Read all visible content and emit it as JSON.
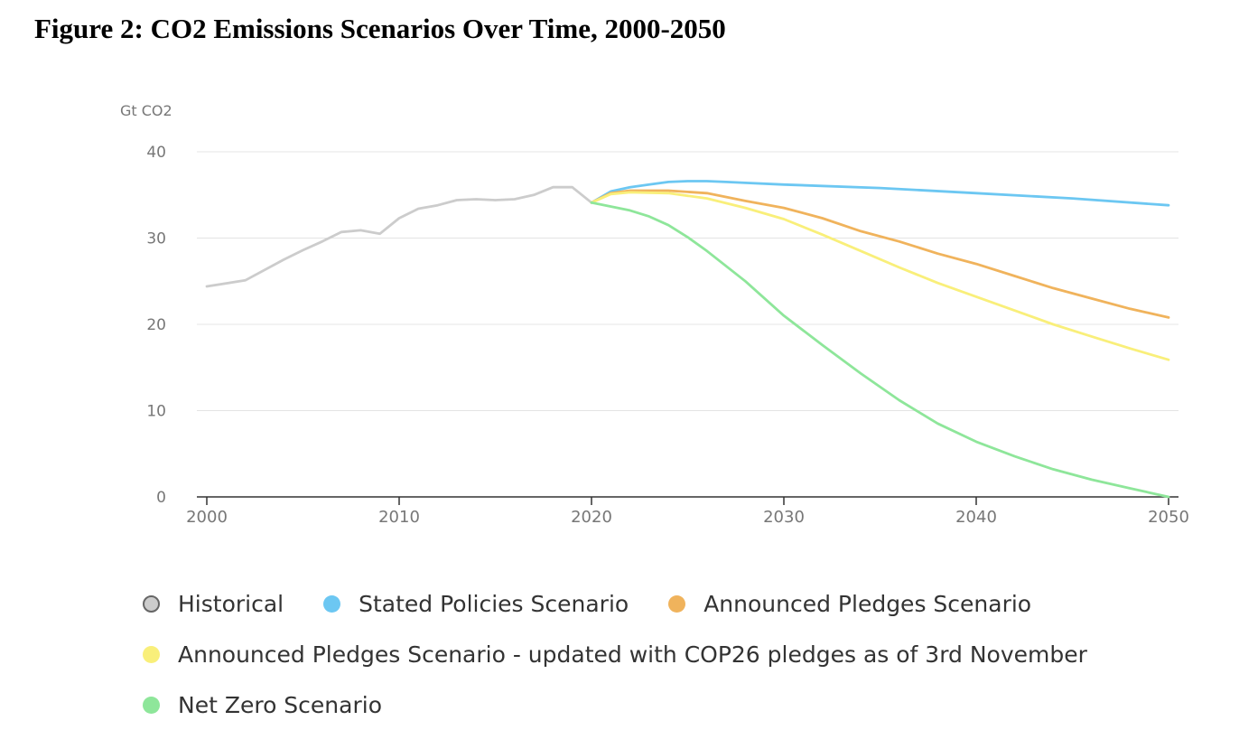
{
  "figure_title": "Figure 2: CO2 Emissions Scenarios Over Time, 2000-2050",
  "chart_data": {
    "type": "line",
    "title": "Figure 2: CO2 Emissions Scenarios Over Time, 2000-2050",
    "ylabel": "Gt CO2",
    "xlabel": "",
    "xlim": [
      2000,
      2050
    ],
    "ylim": [
      0,
      40
    ],
    "x_ticks": [
      "2000",
      "2010",
      "2020",
      "2030",
      "2040",
      "2050"
    ],
    "y_ticks": [
      "0",
      "10",
      "20",
      "30",
      "40"
    ],
    "grid": true,
    "legend_position": "bottom",
    "series": [
      {
        "name": "Historical",
        "color": "#cccccc",
        "x": [
          2000,
          2002,
          2004,
          2005,
          2006,
          2007,
          2008,
          2009,
          2010,
          2011,
          2012,
          2013,
          2014,
          2015,
          2016,
          2017,
          2018,
          2019,
          2020
        ],
        "y": [
          24.4,
          25.1,
          27.5,
          28.6,
          29.6,
          30.7,
          30.9,
          30.5,
          32.3,
          33.4,
          33.8,
          34.4,
          34.5,
          34.4,
          34.5,
          35.0,
          35.9,
          35.9,
          34.1
        ]
      },
      {
        "name": "Stated Policies Scenario",
        "color": "#6cc7f2",
        "x": [
          2020,
          2021,
          2022,
          2023,
          2024,
          2025,
          2026,
          2027,
          2028,
          2030,
          2035,
          2040,
          2045,
          2050
        ],
        "y": [
          34.1,
          35.4,
          35.9,
          36.2,
          36.5,
          36.6,
          36.6,
          36.5,
          36.4,
          36.2,
          35.8,
          35.2,
          34.6,
          33.8
        ]
      },
      {
        "name": "Announced Pledges Scenario",
        "color": "#f0b35c",
        "x": [
          2020,
          2021,
          2022,
          2024,
          2026,
          2028,
          2030,
          2032,
          2034,
          2036,
          2038,
          2040,
          2042,
          2044,
          2046,
          2048,
          2050
        ],
        "y": [
          34.1,
          35.2,
          35.5,
          35.5,
          35.2,
          34.3,
          33.5,
          32.3,
          30.8,
          29.6,
          28.2,
          27.0,
          25.6,
          24.2,
          23.0,
          21.8,
          20.8
        ]
      },
      {
        "name": "Announced Pledges Scenario - updated with COP26 pledges as of 3rd November",
        "color": "#f9ef7a",
        "x": [
          2020,
          2021,
          2022,
          2024,
          2026,
          2028,
          2030,
          2032,
          2034,
          2036,
          2038,
          2040,
          2042,
          2044,
          2046,
          2048,
          2050
        ],
        "y": [
          34.1,
          35.1,
          35.3,
          35.2,
          34.6,
          33.5,
          32.2,
          30.4,
          28.5,
          26.6,
          24.8,
          23.2,
          21.6,
          20.0,
          18.6,
          17.2,
          15.9
        ]
      },
      {
        "name": "Net Zero Scenario",
        "color": "#8ee69a",
        "x": [
          2020,
          2022,
          2023,
          2024,
          2025,
          2026,
          2028,
          2030,
          2032,
          2034,
          2036,
          2038,
          2040,
          2042,
          2044,
          2046,
          2048,
          2050
        ],
        "y": [
          34.1,
          33.2,
          32.5,
          31.5,
          30.1,
          28.5,
          25.0,
          21.0,
          17.6,
          14.3,
          11.2,
          8.5,
          6.4,
          4.7,
          3.2,
          2.0,
          1.0,
          0.0
        ]
      }
    ]
  }
}
